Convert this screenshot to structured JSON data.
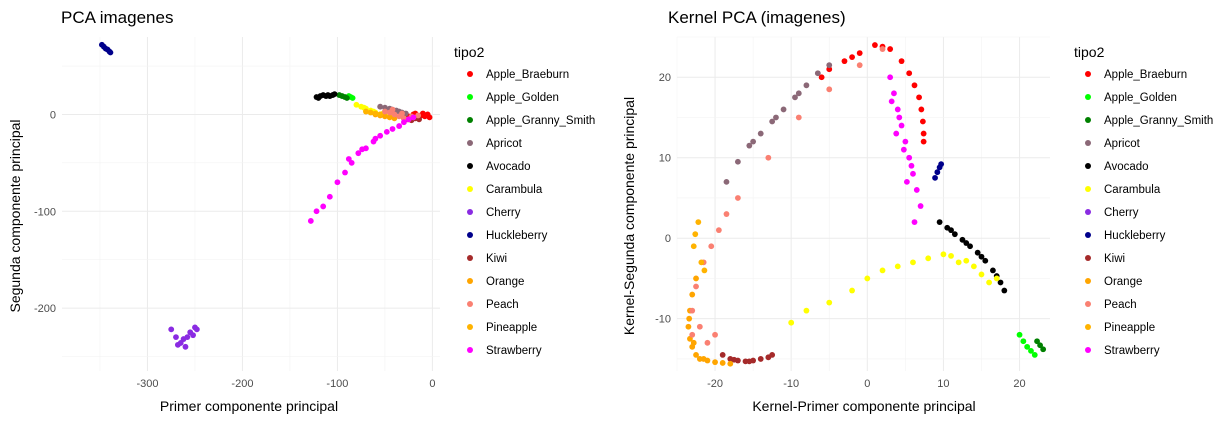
{
  "chart_data": [
    {
      "type": "scatter",
      "title": "PCA imagenes",
      "xlabel": "Primer componente principal",
      "ylabel": "Segunda componente principal",
      "xlim": [
        -390,
        8
      ],
      "ylim": [
        -265,
        80
      ],
      "xticks": [
        -300,
        -200,
        -100,
        0
      ],
      "yticks": [
        -200,
        -100,
        0
      ],
      "grid": true,
      "legend_title": "tipo2",
      "legend_position": "right",
      "series": [
        {
          "name": "Apple_Braeburn",
          "color": "#ff0000",
          "x": [
            -25,
            -20,
            -15,
            -12,
            -8,
            -5,
            -3,
            -18,
            -10,
            -6
          ],
          "y": [
            -2,
            0,
            -3,
            -1,
            -2,
            0,
            -3,
            1,
            1,
            -1
          ]
        },
        {
          "name": "Apple_Golden",
          "color": "#00ff00",
          "x": [
            -88,
            -86,
            -84
          ],
          "y": [
            19,
            18,
            17
          ]
        },
        {
          "name": "Apple_Granny_Smith",
          "color": "#008000",
          "x": [
            -98,
            -95,
            -92,
            -90
          ],
          "y": [
            20,
            19,
            18,
            17
          ]
        },
        {
          "name": "Apricot",
          "color": "#8b6877",
          "x": [
            -55,
            -50,
            -45,
            -42,
            -38,
            -35,
            -32,
            -28
          ],
          "y": [
            8,
            7,
            6,
            5,
            4,
            3,
            2,
            1
          ]
        },
        {
          "name": "Avocado",
          "color": "#000000",
          "x": [
            -122,
            -118,
            -115,
            -112,
            -110,
            -108,
            -105,
            -103,
            -120
          ],
          "y": [
            18,
            19,
            20,
            19,
            20,
            19,
            20,
            21,
            17
          ]
        },
        {
          "name": "Carambula",
          "color": "#ffff00",
          "x": [
            -80,
            -75,
            -70,
            -65,
            -60,
            -55,
            -50,
            -45,
            -72,
            -62,
            -52
          ],
          "y": [
            10,
            8,
            6,
            4,
            2,
            0,
            -1,
            -2,
            7,
            3,
            1
          ]
        },
        {
          "name": "Cherry",
          "color": "#8a2be2",
          "x": [
            -275,
            -270,
            -265,
            -262,
            -258,
            -255,
            -250,
            -248,
            -268,
            -260,
            -252
          ],
          "y": [
            -222,
            -230,
            -236,
            -232,
            -230,
            -225,
            -220,
            -222,
            -238,
            -240,
            -228
          ]
        },
        {
          "name": "Huckleberry",
          "color": "#00008b",
          "x": [
            -348,
            -346,
            -344,
            -342,
            -340,
            -339
          ],
          "y": [
            72,
            70,
            68,
            67,
            65,
            64
          ]
        },
        {
          "name": "Kiwi",
          "color": "#a52a2a",
          "x": [
            -30,
            -26,
            -22,
            -18,
            -14
          ],
          "y": [
            -4,
            -5,
            -6,
            -4,
            -5
          ]
        },
        {
          "name": "Orange",
          "color": "#ffa500",
          "x": [
            -60,
            -55,
            -50,
            -45,
            -40
          ],
          "y": [
            0,
            -1,
            -2,
            -3,
            -4
          ]
        },
        {
          "name": "Peach",
          "color": "#fa8072",
          "x": [
            -50,
            -45,
            -40,
            -35,
            -30,
            -25,
            -20,
            -15,
            -42,
            -32,
            -22
          ],
          "y": [
            3,
            2,
            0,
            -2,
            -4,
            -5,
            -3,
            -1,
            5,
            1,
            -2
          ]
        },
        {
          "name": "Pineapple",
          "color": "#ffb300",
          "x": [
            -70,
            -65,
            -60,
            -55
          ],
          "y": [
            3,
            2,
            1,
            0
          ]
        },
        {
          "name": "Strawberry",
          "color": "#ff00ff",
          "x": [
            -128,
            -122,
            -115,
            -108,
            -100,
            -92,
            -85,
            -78,
            -70,
            -62,
            -55,
            -48,
            -42,
            -35,
            -30,
            -25,
            -20,
            -88,
            -74,
            -60
          ],
          "y": [
            -110,
            -100,
            -95,
            -85,
            -70,
            -60,
            -50,
            -40,
            -35,
            -28,
            -22,
            -18,
            -15,
            -12,
            -8,
            -5,
            -3,
            -46,
            -36,
            -25
          ]
        }
      ]
    },
    {
      "type": "scatter",
      "title": "Kernel PCA (imagenes)",
      "xlabel": "Kernel-Primer componente principal",
      "ylabel": "Kernel-Segunda componente principal",
      "xlim": [
        -25,
        24
      ],
      "ylim": [
        -16.5,
        25
      ],
      "xticks": [
        -20,
        -10,
        0,
        10,
        20
      ],
      "yticks": [
        -10,
        0,
        10,
        20
      ],
      "grid": true,
      "legend_title": "tipo2",
      "legend_position": "right",
      "series": [
        {
          "name": "Apple_Braeburn",
          "color": "#ff0000",
          "x": [
            -5,
            -3,
            -1,
            1,
            3,
            4.5,
            5.5,
            6.2,
            6.8,
            7.1,
            7.3,
            7.4,
            7.4,
            -6,
            -2,
            2
          ],
          "y": [
            21,
            22,
            23,
            24,
            23.5,
            22,
            20.5,
            19,
            17.5,
            16,
            14.5,
            13,
            12,
            20,
            22.5,
            23.8
          ]
        },
        {
          "name": "Apple_Golden",
          "color": "#00ff00",
          "x": [
            20,
            20.5,
            21,
            21.5,
            22
          ],
          "y": [
            -12,
            -12.8,
            -13.5,
            -14,
            -14.5
          ]
        },
        {
          "name": "Apple_Granny_Smith",
          "color": "#008000",
          "x": [
            22.3,
            22.7,
            23.1
          ],
          "y": [
            -12.8,
            -13.3,
            -13.8
          ]
        },
        {
          "name": "Apricot",
          "color": "#8b6877",
          "x": [
            -18.5,
            -17,
            -15.5,
            -14,
            -12.5,
            -11,
            -9.5,
            -8,
            -6.5,
            -5,
            -15,
            -12,
            -9
          ],
          "y": [
            7,
            9.5,
            11.5,
            13,
            14.5,
            16,
            17.5,
            19,
            20.5,
            21.5,
            12,
            15,
            18
          ]
        },
        {
          "name": "Avocado",
          "color": "#000000",
          "x": [
            9.5,
            10.5,
            11.5,
            12.5,
            13.5,
            14.5,
            15.5,
            16.5,
            17.5,
            18,
            11,
            13,
            15,
            17
          ],
          "y": [
            2,
            1.3,
            0.5,
            -0.2,
            -1,
            -1.8,
            -2.8,
            -4,
            -5.5,
            -6.5,
            1,
            -0.6,
            -2.3,
            -4.7
          ]
        },
        {
          "name": "Carambula",
          "color": "#ffff00",
          "x": [
            -10,
            -8,
            -5,
            -2,
            0,
            2,
            4,
            6,
            8,
            10,
            12,
            14,
            15,
            16,
            17,
            11,
            13
          ],
          "y": [
            -10.5,
            -9,
            -8,
            -6.5,
            -5,
            -4,
            -3.5,
            -3,
            -2.5,
            -2,
            -3,
            -3.5,
            -4.5,
            -5.5,
            -5,
            -2.2,
            -2.8
          ]
        },
        {
          "name": "Cherry",
          "color": "#8a2be2",
          "x": [],
          "y": []
        },
        {
          "name": "Huckleberry",
          "color": "#00008b",
          "x": [
            8.9,
            9.2,
            9.5,
            9.7
          ],
          "y": [
            7.5,
            8.2,
            8.8,
            9.2
          ]
        },
        {
          "name": "Kiwi",
          "color": "#a52a2a",
          "x": [
            -19,
            -18,
            -17,
            -16,
            -15,
            -14,
            -13,
            -12.5,
            -17.5,
            -15.5
          ],
          "y": [
            -14.5,
            -15,
            -15.2,
            -15.3,
            -15.2,
            -15,
            -14.8,
            -14.5,
            -15.1,
            -15.3
          ]
        },
        {
          "name": "Orange",
          "color": "#ffa500",
          "x": [
            -22.5,
            -23,
            -23.3,
            -23.5,
            -23.3,
            -23,
            -22.5,
            -22,
            -21,
            -20,
            -19,
            -18,
            -23.4,
            -22.8,
            -21.5
          ],
          "y": [
            -5,
            -7,
            -9,
            -11,
            -12.5,
            -13.5,
            -14.5,
            -15,
            -15.2,
            -15.4,
            -15.5,
            -15.6,
            -10,
            -13,
            -15
          ]
        },
        {
          "name": "Peach",
          "color": "#fa8072",
          "x": [
            -23,
            -22.5,
            -21.5,
            -20.5,
            -19.5,
            -18.5,
            -21,
            -20,
            -22,
            -23,
            -17,
            -13,
            -9,
            -5,
            -1,
            2
          ],
          "y": [
            -9,
            -6,
            -3,
            -1,
            1,
            3,
            -13,
            -12,
            -11,
            -12,
            5,
            10,
            15,
            18.5,
            21.5,
            23.5
          ]
        },
        {
          "name": "Pineapple",
          "color": "#ffb300",
          "x": [
            -22.8,
            -22.6,
            -22.2,
            -21.8,
            -21.4
          ],
          "y": [
            -1,
            0.5,
            2,
            -3,
            -4
          ]
        },
        {
          "name": "Strawberry",
          "color": "#ff00ff",
          "x": [
            3,
            3.5,
            4,
            4.5,
            5,
            5.5,
            6,
            6.5,
            7,
            3.8,
            4.8,
            5.8,
            6.2,
            3.2,
            4.2,
            5.2
          ],
          "y": [
            20,
            18,
            16,
            14,
            12,
            10,
            8,
            6,
            4,
            13,
            11,
            9,
            2,
            17,
            15,
            7
          ]
        }
      ]
    }
  ]
}
